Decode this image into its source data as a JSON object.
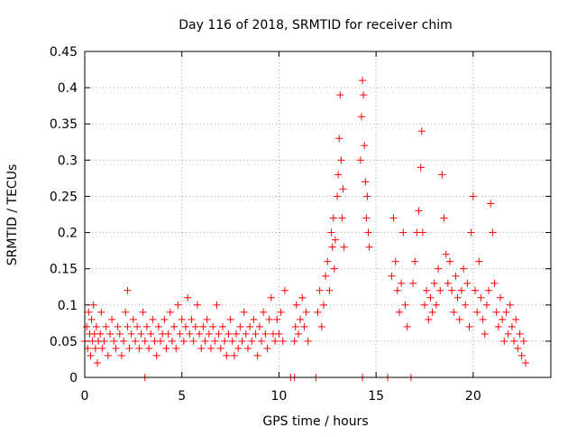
{
  "chart_data": {
    "type": "scatter",
    "title": "Day 116 of 2018, SRMTID for receiver chim",
    "xlabel": "GPS time / hours",
    "ylabel": "SRMTID / TECUs",
    "xlim": [
      0,
      24
    ],
    "ylim": [
      0,
      0.45
    ],
    "x_ticks": [
      0,
      5,
      10,
      15,
      20
    ],
    "x_tick_labels": [
      "0",
      "5",
      "10",
      "15",
      "20"
    ],
    "y_ticks": [
      0,
      0.05,
      0.1,
      0.15,
      0.2,
      0.25,
      0.3,
      0.35,
      0.4,
      0.45
    ],
    "y_tick_labels": [
      "0",
      "0.05",
      "0.1",
      "0.15",
      "0.2",
      "0.25",
      "0.3",
      "0.35",
      "0.4",
      "0.45"
    ],
    "grid": true,
    "marker": "plus",
    "series": [
      {
        "name": "SRMTID",
        "color": "#ff0000",
        "points": [
          [
            0.0,
            0.05
          ],
          [
            0.1,
            0.07
          ],
          [
            0.15,
            0.04
          ],
          [
            0.2,
            0.09
          ],
          [
            0.25,
            0.06
          ],
          [
            0.3,
            0.03
          ],
          [
            0.35,
            0.08
          ],
          [
            0.4,
            0.05
          ],
          [
            0.45,
            0.1
          ],
          [
            0.5,
            0.06
          ],
          [
            0.55,
            0.04
          ],
          [
            0.6,
            0.07
          ],
          [
            0.65,
            0.02
          ],
          [
            0.7,
            0.05
          ],
          [
            0.8,
            0.06
          ],
          [
            0.85,
            0.09
          ],
          [
            0.9,
            0.04
          ],
          [
            1.0,
            0.05
          ],
          [
            1.1,
            0.07
          ],
          [
            1.2,
            0.03
          ],
          [
            1.3,
            0.06
          ],
          [
            1.4,
            0.08
          ],
          [
            1.5,
            0.05
          ],
          [
            1.6,
            0.04
          ],
          [
            1.7,
            0.07
          ],
          [
            1.8,
            0.06
          ],
          [
            1.9,
            0.03
          ],
          [
            2.0,
            0.05
          ],
          [
            2.1,
            0.09
          ],
          [
            2.2,
            0.07
          ],
          [
            2.3,
            0.04
          ],
          [
            2.4,
            0.06
          ],
          [
            2.2,
            0.12
          ],
          [
            2.5,
            0.08
          ],
          [
            2.6,
            0.05
          ],
          [
            2.7,
            0.07
          ],
          [
            2.8,
            0.04
          ],
          [
            2.9,
            0.06
          ],
          [
            3.0,
            0.09
          ],
          [
            3.1,
            0.05
          ],
          [
            3.2,
            0.07
          ],
          [
            3.3,
            0.04
          ],
          [
            3.4,
            0.06
          ],
          [
            3.5,
            0.08
          ],
          [
            3.6,
            0.05
          ],
          [
            3.7,
            0.03
          ],
          [
            3.8,
            0.07
          ],
          [
            3.9,
            0.05
          ],
          [
            4.0,
            0.06
          ],
          [
            4.1,
            0.08
          ],
          [
            4.2,
            0.04
          ],
          [
            4.3,
            0.06
          ],
          [
            4.4,
            0.09
          ],
          [
            4.5,
            0.05
          ],
          [
            4.6,
            0.07
          ],
          [
            4.7,
            0.04
          ],
          [
            4.8,
            0.1
          ],
          [
            4.9,
            0.06
          ],
          [
            5.0,
            0.08
          ],
          [
            5.1,
            0.05
          ],
          [
            5.2,
            0.07
          ],
          [
            5.3,
            0.11
          ],
          [
            5.4,
            0.06
          ],
          [
            5.5,
            0.08
          ],
          [
            5.6,
            0.05
          ],
          [
            5.7,
            0.07
          ],
          [
            5.8,
            0.1
          ],
          [
            5.9,
            0.06
          ],
          [
            6.0,
            0.04
          ],
          [
            6.1,
            0.07
          ],
          [
            6.2,
            0.05
          ],
          [
            6.3,
            0.08
          ],
          [
            6.4,
            0.06
          ],
          [
            6.5,
            0.04
          ],
          [
            6.6,
            0.07
          ],
          [
            6.7,
            0.05
          ],
          [
            6.8,
            0.1
          ],
          [
            6.9,
            0.06
          ],
          [
            7.0,
            0.04
          ],
          [
            7.1,
            0.07
          ],
          [
            7.2,
            0.05
          ],
          [
            7.3,
            0.03
          ],
          [
            7.4,
            0.06
          ],
          [
            7.5,
            0.08
          ],
          [
            7.6,
            0.05
          ],
          [
            7.7,
            0.03
          ],
          [
            7.8,
            0.06
          ],
          [
            7.9,
            0.04
          ],
          [
            8.0,
            0.07
          ],
          [
            8.1,
            0.05
          ],
          [
            8.2,
            0.09
          ],
          [
            8.3,
            0.06
          ],
          [
            8.4,
            0.04
          ],
          [
            8.5,
            0.07
          ],
          [
            8.6,
            0.05
          ],
          [
            8.7,
            0.08
          ],
          [
            8.8,
            0.06
          ],
          [
            8.9,
            0.03
          ],
          [
            9.0,
            0.07
          ],
          [
            9.1,
            0.05
          ],
          [
            9.2,
            0.09
          ],
          [
            9.3,
            0.06
          ],
          [
            9.4,
            0.04
          ],
          [
            9.5,
            0.08
          ],
          [
            9.6,
            0.11
          ],
          [
            9.7,
            0.06
          ],
          [
            9.8,
            0.05
          ],
          [
            9.9,
            0.08
          ],
          [
            10.0,
            0.06
          ],
          [
            10.1,
            0.09
          ],
          [
            10.2,
            0.05
          ],
          [
            10.3,
            0.12
          ],
          [
            10.8,
            0.05
          ],
          [
            10.85,
            0.07
          ],
          [
            10.9,
            0.1
          ],
          [
            11.0,
            0.06
          ],
          [
            11.1,
            0.08
          ],
          [
            11.2,
            0.11
          ],
          [
            11.3,
            0.07
          ],
          [
            11.4,
            0.09
          ],
          [
            11.5,
            0.05
          ],
          [
            12.0,
            0.09
          ],
          [
            12.1,
            0.12
          ],
          [
            12.2,
            0.07
          ],
          [
            12.3,
            0.1
          ],
          [
            12.4,
            0.14
          ],
          [
            12.5,
            0.16
          ],
          [
            12.6,
            0.12
          ],
          [
            12.7,
            0.2
          ],
          [
            12.75,
            0.18
          ],
          [
            12.8,
            0.22
          ],
          [
            12.85,
            0.15
          ],
          [
            12.9,
            0.19
          ],
          [
            13.0,
            0.25
          ],
          [
            13.05,
            0.28
          ],
          [
            13.1,
            0.33
          ],
          [
            13.15,
            0.39
          ],
          [
            13.2,
            0.3
          ],
          [
            13.25,
            0.22
          ],
          [
            13.3,
            0.26
          ],
          [
            13.35,
            0.18
          ],
          [
            14.2,
            0.3
          ],
          [
            14.25,
            0.36
          ],
          [
            14.3,
            0.41
          ],
          [
            14.35,
            0.39
          ],
          [
            14.4,
            0.32
          ],
          [
            14.45,
            0.27
          ],
          [
            14.5,
            0.22
          ],
          [
            14.55,
            0.25
          ],
          [
            14.6,
            0.2
          ],
          [
            14.65,
            0.18
          ],
          [
            15.8,
            0.14
          ],
          [
            15.9,
            0.22
          ],
          [
            16.0,
            0.16
          ],
          [
            16.1,
            0.12
          ],
          [
            16.2,
            0.09
          ],
          [
            16.3,
            0.13
          ],
          [
            16.4,
            0.2
          ],
          [
            16.5,
            0.1
          ],
          [
            16.6,
            0.07
          ],
          [
            16.9,
            0.13
          ],
          [
            17.0,
            0.16
          ],
          [
            17.1,
            0.2
          ],
          [
            17.2,
            0.23
          ],
          [
            17.3,
            0.29
          ],
          [
            17.35,
            0.34
          ],
          [
            17.4,
            0.2
          ],
          [
            17.5,
            0.1
          ],
          [
            17.6,
            0.12
          ],
          [
            17.7,
            0.08
          ],
          [
            17.8,
            0.11
          ],
          [
            17.9,
            0.09
          ],
          [
            18.0,
            0.13
          ],
          [
            18.1,
            0.1
          ],
          [
            18.2,
            0.15
          ],
          [
            18.3,
            0.12
          ],
          [
            18.4,
            0.28
          ],
          [
            18.5,
            0.22
          ],
          [
            18.6,
            0.17
          ],
          [
            18.7,
            0.13
          ],
          [
            18.8,
            0.16
          ],
          [
            18.9,
            0.12
          ],
          [
            19.0,
            0.09
          ],
          [
            19.1,
            0.14
          ],
          [
            19.2,
            0.11
          ],
          [
            19.3,
            0.08
          ],
          [
            19.4,
            0.12
          ],
          [
            19.5,
            0.15
          ],
          [
            19.6,
            0.1
          ],
          [
            19.7,
            0.13
          ],
          [
            19.8,
            0.07
          ],
          [
            19.9,
            0.2
          ],
          [
            20.0,
            0.25
          ],
          [
            20.1,
            0.12
          ],
          [
            20.2,
            0.09
          ],
          [
            20.3,
            0.16
          ],
          [
            20.4,
            0.11
          ],
          [
            20.5,
            0.08
          ],
          [
            20.6,
            0.06
          ],
          [
            20.7,
            0.1
          ],
          [
            20.8,
            0.12
          ],
          [
            20.9,
            0.24
          ],
          [
            21.0,
            0.2
          ],
          [
            21.1,
            0.13
          ],
          [
            21.2,
            0.09
          ],
          [
            21.3,
            0.07
          ],
          [
            21.4,
            0.11
          ],
          [
            21.5,
            0.08
          ],
          [
            21.6,
            0.05
          ],
          [
            21.7,
            0.09
          ],
          [
            21.8,
            0.06
          ],
          [
            21.9,
            0.1
          ],
          [
            22.0,
            0.07
          ],
          [
            22.1,
            0.05
          ],
          [
            22.2,
            0.08
          ],
          [
            22.3,
            0.04
          ],
          [
            22.4,
            0.06
          ],
          [
            22.5,
            0.03
          ],
          [
            22.6,
            0.05
          ],
          [
            22.7,
            0.02
          ],
          [
            3.1,
            0.0
          ],
          [
            10.6,
            0.0
          ],
          [
            10.8,
            0.0
          ],
          [
            11.9,
            0.0
          ],
          [
            14.3,
            0.0
          ],
          [
            15.6,
            0.0
          ],
          [
            16.8,
            0.0
          ]
        ]
      }
    ]
  }
}
